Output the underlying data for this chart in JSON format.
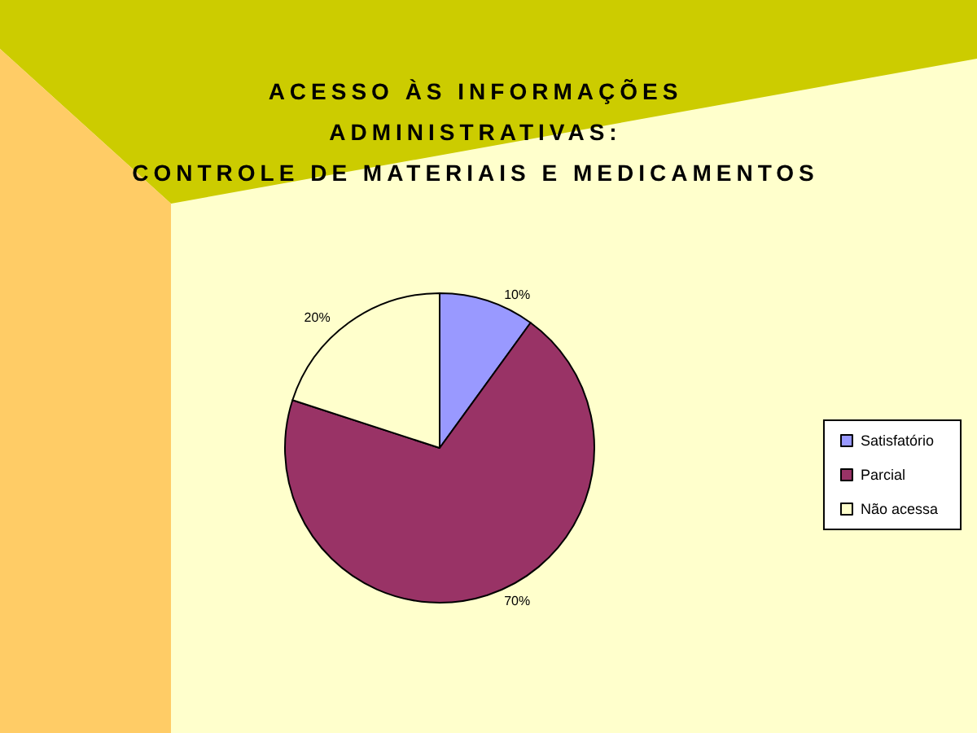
{
  "chart_data": {
    "type": "pie",
    "title": "ACESSO ÀS INFORMAÇÕES\nADMINISTRATIVAS:\nCONTROLE DE MATERIAIS E MEDICAMENTOS",
    "categories": [
      "Satisfatório",
      "Parcial",
      "Não acessa"
    ],
    "values": [
      10,
      70,
      20
    ],
    "colors": [
      "#9999ff",
      "#993366",
      "#ffffcc"
    ],
    "value_labels": [
      "10%",
      "70%",
      "20%"
    ],
    "legend": "right"
  }
}
